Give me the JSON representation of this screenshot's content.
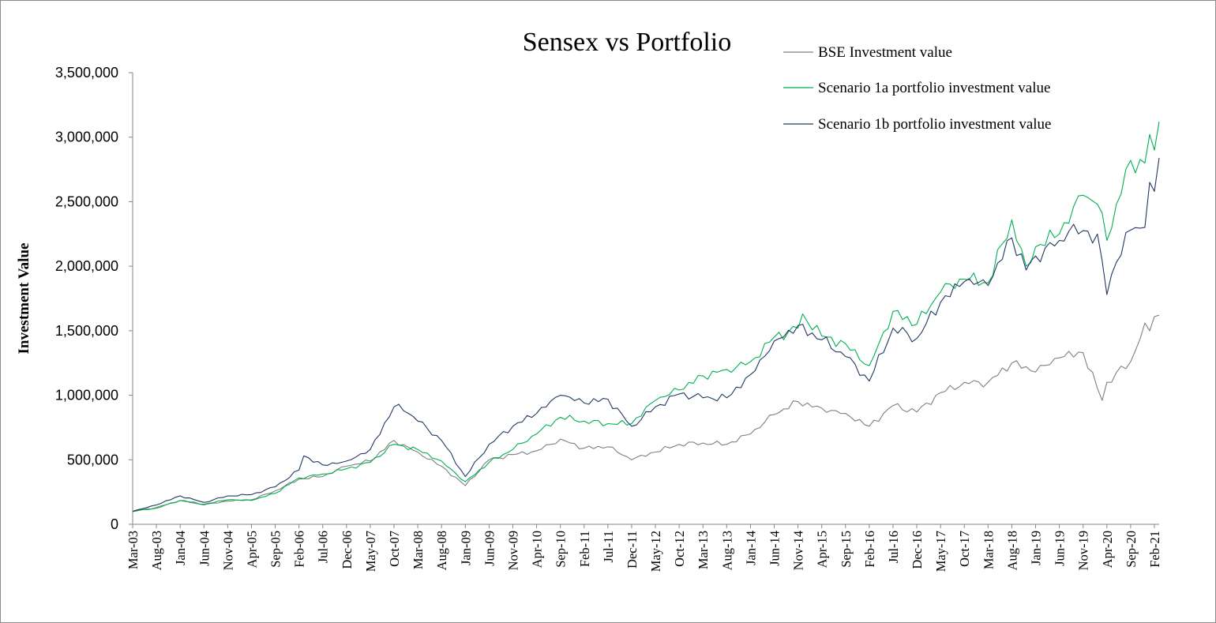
{
  "chart_data": {
    "type": "line",
    "title": "Sensex vs Portfolio",
    "xlabel": "",
    "ylabel": "Investment Value",
    "ylim": [
      0,
      3500000
    ],
    "y_ticks": [
      0,
      500000,
      1000000,
      1500000,
      2000000,
      2500000,
      3000000,
      3500000
    ],
    "y_tick_labels": [
      "0",
      "500,000",
      "1,000,000",
      "1,500,000",
      "2,000,000",
      "2,500,000",
      "3,000,000",
      "3,500,000"
    ],
    "x_tick_labels": [
      "Mar-03",
      "Aug-03",
      "Jan-04",
      "Jun-04",
      "Nov-04",
      "Apr-05",
      "Sep-05",
      "Feb-06",
      "Jul-06",
      "Dec-06",
      "May-07",
      "Oct-07",
      "Mar-08",
      "Aug-08",
      "Jan-09",
      "Jun-09",
      "Nov-09",
      "Apr-10",
      "Sep-10",
      "Feb-11",
      "Jul-11",
      "Dec-11",
      "May-12",
      "Oct-12",
      "Mar-13",
      "Aug-13",
      "Jan-14",
      "Jun-14",
      "Nov-14",
      "Apr-15",
      "Sep-15",
      "Feb-16",
      "Jul-16",
      "Dec-16",
      "May-17",
      "Oct-17",
      "Mar-18",
      "Aug-18",
      "Jan-19",
      "Jun-19",
      "Nov-19",
      "Apr-20",
      "Sep-20",
      "Feb-21"
    ],
    "x_start": "Mar-03",
    "x_end": "Mar-21",
    "grid": false,
    "legend_position": "top-right",
    "series": [
      {
        "name": "BSE Investment value",
        "color": "#7f7f7f",
        "anchors": [
          [
            "Mar-03",
            100000
          ],
          [
            "Aug-03",
            130000
          ],
          [
            "Jan-04",
            185000
          ],
          [
            "Jun-04",
            150000
          ],
          [
            "Nov-04",
            180000
          ],
          [
            "Apr-05",
            190000
          ],
          [
            "Sep-05",
            260000
          ],
          [
            "Feb-06",
            350000
          ],
          [
            "Jul-06",
            370000
          ],
          [
            "Dec-06",
            450000
          ],
          [
            "May-07",
            490000
          ],
          [
            "Oct-07",
            650000
          ],
          [
            "Mar-08",
            560000
          ],
          [
            "Aug-08",
            450000
          ],
          [
            "Jan-09",
            300000
          ],
          [
            "Jun-09",
            500000
          ],
          [
            "Nov-09",
            540000
          ],
          [
            "Apr-10",
            570000
          ],
          [
            "Sep-10",
            660000
          ],
          [
            "Feb-11",
            590000
          ],
          [
            "Jul-11",
            600000
          ],
          [
            "Dec-11",
            500000
          ],
          [
            "May-12",
            560000
          ],
          [
            "Oct-12",
            620000
          ],
          [
            "Mar-13",
            630000
          ],
          [
            "Aug-13",
            620000
          ],
          [
            "Jan-14",
            700000
          ],
          [
            "Jun-14",
            850000
          ],
          [
            "Nov-14",
            950000
          ],
          [
            "Apr-15",
            900000
          ],
          [
            "Sep-15",
            860000
          ],
          [
            "Feb-16",
            760000
          ],
          [
            "Jul-16",
            920000
          ],
          [
            "Dec-16",
            870000
          ],
          [
            "May-17",
            1020000
          ],
          [
            "Oct-17",
            1100000
          ],
          [
            "Mar-18",
            1100000
          ],
          [
            "Aug-18",
            1250000
          ],
          [
            "Jan-19",
            1180000
          ],
          [
            "Jun-19",
            1290000
          ],
          [
            "Nov-19",
            1330000
          ],
          [
            "Mar-20",
            960000
          ],
          [
            "Apr-20",
            1100000
          ],
          [
            "Sep-20",
            1260000
          ],
          [
            "Dec-20",
            1560000
          ],
          [
            "Jan-21",
            1500000
          ],
          [
            "Feb-21",
            1610000
          ],
          [
            "Mar-21",
            1620000
          ]
        ]
      },
      {
        "name": "Scenario 1a portfolio investment value",
        "color": "#00b050",
        "anchors": [
          [
            "Mar-03",
            100000
          ],
          [
            "Aug-03",
            125000
          ],
          [
            "Jan-04",
            185000
          ],
          [
            "Jun-04",
            155000
          ],
          [
            "Nov-04",
            190000
          ],
          [
            "Apr-05",
            185000
          ],
          [
            "Sep-05",
            240000
          ],
          [
            "Feb-06",
            360000
          ],
          [
            "Jul-06",
            390000
          ],
          [
            "Dec-06",
            430000
          ],
          [
            "May-07",
            480000
          ],
          [
            "Oct-07",
            620000
          ],
          [
            "Mar-08",
            580000
          ],
          [
            "Aug-08",
            490000
          ],
          [
            "Jan-09",
            330000
          ],
          [
            "Jun-09",
            480000
          ],
          [
            "Nov-09",
            580000
          ],
          [
            "Apr-10",
            700000
          ],
          [
            "Sep-10",
            830000
          ],
          [
            "Feb-11",
            800000
          ],
          [
            "Jul-11",
            780000
          ],
          [
            "Dec-11",
            780000
          ],
          [
            "May-12",
            960000
          ],
          [
            "Oct-12",
            1040000
          ],
          [
            "Mar-13",
            1150000
          ],
          [
            "Aug-13",
            1200000
          ],
          [
            "Jan-14",
            1260000
          ],
          [
            "Jun-14",
            1450000
          ],
          [
            "Nov-14",
            1520000
          ],
          [
            "Dec-14",
            1630000
          ],
          [
            "Apr-15",
            1460000
          ],
          [
            "Sep-15",
            1400000
          ],
          [
            "Feb-16",
            1230000
          ],
          [
            "Jul-16",
            1650000
          ],
          [
            "Dec-16",
            1550000
          ],
          [
            "May-17",
            1800000
          ],
          [
            "Oct-17",
            1900000
          ],
          [
            "Mar-18",
            1870000
          ],
          [
            "Aug-18",
            2360000
          ],
          [
            "Nov-18",
            2000000
          ],
          [
            "Jan-19",
            2150000
          ],
          [
            "Jun-19",
            2250000
          ],
          [
            "Nov-19",
            2550000
          ],
          [
            "Feb-20",
            2480000
          ],
          [
            "Apr-20",
            2200000
          ],
          [
            "Jun-20",
            2480000
          ],
          [
            "Sep-20",
            2820000
          ],
          [
            "Dec-20",
            2800000
          ],
          [
            "Jan-21",
            3020000
          ],
          [
            "Feb-21",
            2900000
          ],
          [
            "Mar-21",
            3120000
          ]
        ]
      },
      {
        "name": "Scenario 1b portfolio investment value",
        "color": "#203864",
        "anchors": [
          [
            "Mar-03",
            100000
          ],
          [
            "Aug-03",
            150000
          ],
          [
            "Jan-04",
            220000
          ],
          [
            "Jun-04",
            170000
          ],
          [
            "Nov-04",
            220000
          ],
          [
            "Apr-05",
            230000
          ],
          [
            "Sep-05",
            290000
          ],
          [
            "Feb-06",
            420000
          ],
          [
            "Mar-06",
            530000
          ],
          [
            "Jul-06",
            460000
          ],
          [
            "Dec-06",
            490000
          ],
          [
            "May-07",
            580000
          ],
          [
            "Oct-07",
            910000
          ],
          [
            "Nov-07",
            930000
          ],
          [
            "Mar-08",
            800000
          ],
          [
            "Aug-08",
            650000
          ],
          [
            "Jan-09",
            370000
          ],
          [
            "Jun-09",
            620000
          ],
          [
            "Nov-09",
            760000
          ],
          [
            "Apr-10",
            860000
          ],
          [
            "Sep-10",
            1000000
          ],
          [
            "Feb-11",
            940000
          ],
          [
            "Jul-11",
            970000
          ],
          [
            "Dec-11",
            760000
          ],
          [
            "May-12",
            910000
          ],
          [
            "Oct-12",
            1010000
          ],
          [
            "Mar-13",
            980000
          ],
          [
            "Aug-13",
            980000
          ],
          [
            "Jan-14",
            1160000
          ],
          [
            "Jun-14",
            1420000
          ],
          [
            "Nov-14",
            1540000
          ],
          [
            "Apr-15",
            1430000
          ],
          [
            "Sep-15",
            1300000
          ],
          [
            "Feb-16",
            1110000
          ],
          [
            "Jul-16",
            1520000
          ],
          [
            "Dec-16",
            1440000
          ],
          [
            "May-17",
            1720000
          ],
          [
            "Oct-17",
            1880000
          ],
          [
            "Mar-18",
            1850000
          ],
          [
            "Aug-18",
            2220000
          ],
          [
            "Nov-18",
            1970000
          ],
          [
            "Jan-19",
            2080000
          ],
          [
            "Jun-19",
            2200000
          ],
          [
            "Aug-19",
            2270000
          ],
          [
            "Feb-20",
            2250000
          ],
          [
            "Apr-20",
            1780000
          ],
          [
            "Jun-20",
            2030000
          ],
          [
            "Sep-20",
            2280000
          ],
          [
            "Dec-20",
            2300000
          ],
          [
            "Jan-21",
            2650000
          ],
          [
            "Feb-21",
            2580000
          ],
          [
            "Mar-21",
            2840000
          ]
        ]
      }
    ]
  }
}
